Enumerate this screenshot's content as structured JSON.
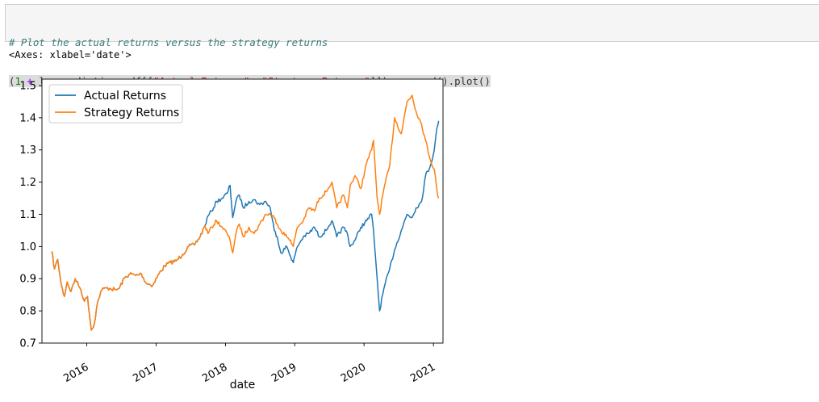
{
  "cell": {
    "line1": [
      {
        "t": "# Plot the actual returns versus the strategy returns",
        "k": "comment"
      }
    ],
    "line2": [
      {
        "t": "(",
        "k": "punct"
      },
      {
        "t": "1",
        "k": "number"
      },
      {
        "t": " ",
        "k": "punct"
      },
      {
        "t": "+",
        "k": "op"
      },
      {
        "t": " lr_predictions_df[[",
        "k": "name"
      },
      {
        "t": "\"Actual Returns\"",
        "k": "string"
      },
      {
        "t": ", ",
        "k": "name"
      },
      {
        "t": "\"Strategy Returns\"",
        "k": "string"
      },
      {
        "t": "]]).cumprod().plot()",
        "k": "name"
      }
    ]
  },
  "output": {
    "repr": "<Axes: xlabel='date'>"
  },
  "chart_data": {
    "type": "line",
    "xlabel": "date",
    "ylabel": "",
    "title": "",
    "xlim": [
      "2015-05-10",
      "2021-02-20"
    ],
    "ylim": [
      0.7,
      1.52
    ],
    "xticks": [
      "2016",
      "2017",
      "2018",
      "2019",
      "2020",
      "2021"
    ],
    "yticks": [
      0.7,
      0.8,
      0.9,
      1.0,
      1.1,
      1.2,
      1.3,
      1.4,
      1.5
    ],
    "ytick_labels": [
      "0.7",
      "0.8",
      "0.9",
      "1.0",
      "1.1",
      "1.2",
      "1.3",
      "1.4",
      "1.5"
    ],
    "grid": false,
    "legend": "upper-left",
    "series": [
      {
        "name": "Actual Returns",
        "color": "#1f77b4",
        "points": [
          [
            "2015-07-01",
            0.985
          ],
          [
            "2015-07-15",
            0.93
          ],
          [
            "2015-08-01",
            0.96
          ],
          [
            "2015-08-20",
            0.88
          ],
          [
            "2015-09-05",
            0.845
          ],
          [
            "2015-09-20",
            0.89
          ],
          [
            "2015-10-10",
            0.86
          ],
          [
            "2015-11-01",
            0.9
          ],
          [
            "2015-12-01",
            0.865
          ],
          [
            "2015-12-20",
            0.83
          ],
          [
            "2016-01-05",
            0.845
          ],
          [
            "2016-01-25",
            0.74
          ],
          [
            "2016-02-10",
            0.76
          ],
          [
            "2016-02-25",
            0.82
          ],
          [
            "2016-03-15",
            0.86
          ],
          [
            "2016-04-01",
            0.87
          ],
          [
            "2016-05-01",
            0.87
          ],
          [
            "2016-06-01",
            0.865
          ],
          [
            "2016-06-20",
            0.87
          ],
          [
            "2016-07-15",
            0.9
          ],
          [
            "2016-08-15",
            0.915
          ],
          [
            "2016-09-15",
            0.91
          ],
          [
            "2016-10-15",
            0.915
          ],
          [
            "2016-11-10",
            0.885
          ],
          [
            "2016-12-15",
            0.88
          ],
          [
            "2017-01-15",
            0.915
          ],
          [
            "2017-02-15",
            0.94
          ],
          [
            "2017-03-15",
            0.95
          ],
          [
            "2017-04-15",
            0.955
          ],
          [
            "2017-05-20",
            0.975
          ],
          [
            "2017-06-20",
            1.0
          ],
          [
            "2017-07-20",
            1.005
          ],
          [
            "2017-08-20",
            1.03
          ],
          [
            "2017-09-15",
            1.065
          ],
          [
            "2017-10-01",
            1.095
          ],
          [
            "2017-10-20",
            1.11
          ],
          [
            "2017-11-15",
            1.14
          ],
          [
            "2017-12-15",
            1.15
          ],
          [
            "2018-01-10",
            1.165
          ],
          [
            "2018-01-25",
            1.19
          ],
          [
            "2018-02-08",
            1.09
          ],
          [
            "2018-02-25",
            1.14
          ],
          [
            "2018-03-15",
            1.16
          ],
          [
            "2018-04-05",
            1.12
          ],
          [
            "2018-05-05",
            1.14
          ],
          [
            "2018-06-01",
            1.145
          ],
          [
            "2018-07-01",
            1.13
          ],
          [
            "2018-08-01",
            1.14
          ],
          [
            "2018-08-25",
            1.12
          ],
          [
            "2018-09-15",
            1.05
          ],
          [
            "2018-10-01",
            1.03
          ],
          [
            "2018-10-20",
            0.98
          ],
          [
            "2018-11-20",
            1.0
          ],
          [
            "2018-12-10",
            0.97
          ],
          [
            "2018-12-24",
            0.95
          ],
          [
            "2019-01-15",
            1.0
          ],
          [
            "2019-02-15",
            1.03
          ],
          [
            "2019-03-15",
            1.04
          ],
          [
            "2019-04-15",
            1.06
          ],
          [
            "2019-05-10",
            1.03
          ],
          [
            "2019-06-15",
            1.05
          ],
          [
            "2019-07-15",
            1.08
          ],
          [
            "2019-08-10",
            1.03
          ],
          [
            "2019-09-15",
            1.06
          ],
          [
            "2019-10-05",
            1.04
          ],
          [
            "2019-10-20",
            1.0
          ],
          [
            "2019-11-15",
            1.02
          ],
          [
            "2019-12-15",
            1.06
          ],
          [
            "2020-01-15",
            1.08
          ],
          [
            "2020-02-10",
            1.1
          ],
          [
            "2020-02-20",
            1.05
          ],
          [
            "2020-03-10",
            0.9
          ],
          [
            "2020-03-23",
            0.8
          ],
          [
            "2020-04-15",
            0.87
          ],
          [
            "2020-05-15",
            0.93
          ],
          [
            "2020-06-10",
            0.99
          ],
          [
            "2020-07-15",
            1.05
          ],
          [
            "2020-08-15",
            1.1
          ],
          [
            "2020-09-10",
            1.09
          ],
          [
            "2020-10-01",
            1.12
          ],
          [
            "2020-10-30",
            1.14
          ],
          [
            "2020-11-20",
            1.22
          ],
          [
            "2020-12-15",
            1.25
          ],
          [
            "2021-01-05",
            1.3
          ],
          [
            "2021-01-20",
            1.37
          ],
          [
            "2021-01-28",
            1.39
          ]
        ]
      },
      {
        "name": "Strategy Returns",
        "color": "#ff7f0e",
        "points": [
          [
            "2015-07-01",
            0.985
          ],
          [
            "2015-07-15",
            0.93
          ],
          [
            "2015-08-01",
            0.96
          ],
          [
            "2015-08-20",
            0.88
          ],
          [
            "2015-09-05",
            0.845
          ],
          [
            "2015-09-20",
            0.89
          ],
          [
            "2015-10-10",
            0.86
          ],
          [
            "2015-11-01",
            0.9
          ],
          [
            "2015-12-01",
            0.865
          ],
          [
            "2015-12-20",
            0.83
          ],
          [
            "2016-01-05",
            0.845
          ],
          [
            "2016-01-25",
            0.74
          ],
          [
            "2016-02-10",
            0.76
          ],
          [
            "2016-02-25",
            0.82
          ],
          [
            "2016-03-15",
            0.86
          ],
          [
            "2016-04-01",
            0.87
          ],
          [
            "2016-05-01",
            0.87
          ],
          [
            "2016-06-01",
            0.865
          ],
          [
            "2016-06-20",
            0.87
          ],
          [
            "2016-07-15",
            0.9
          ],
          [
            "2016-08-15",
            0.915
          ],
          [
            "2016-09-15",
            0.91
          ],
          [
            "2016-10-15",
            0.915
          ],
          [
            "2016-11-10",
            0.885
          ],
          [
            "2016-12-15",
            0.88
          ],
          [
            "2017-01-15",
            0.915
          ],
          [
            "2017-02-15",
            0.94
          ],
          [
            "2017-03-15",
            0.95
          ],
          [
            "2017-04-15",
            0.955
          ],
          [
            "2017-05-20",
            0.975
          ],
          [
            "2017-06-20",
            1.0
          ],
          [
            "2017-07-20",
            1.005
          ],
          [
            "2017-08-20",
            1.03
          ],
          [
            "2017-09-15",
            1.065
          ],
          [
            "2017-10-01",
            1.04
          ],
          [
            "2017-10-20",
            1.06
          ],
          [
            "2017-11-15",
            1.08
          ],
          [
            "2017-12-15",
            1.06
          ],
          [
            "2018-01-10",
            1.04
          ],
          [
            "2018-01-25",
            1.02
          ],
          [
            "2018-02-08",
            0.98
          ],
          [
            "2018-02-25",
            1.04
          ],
          [
            "2018-03-15",
            1.07
          ],
          [
            "2018-04-05",
            1.03
          ],
          [
            "2018-05-05",
            1.06
          ],
          [
            "2018-06-01",
            1.04
          ],
          [
            "2018-07-01",
            1.07
          ],
          [
            "2018-08-01",
            1.1
          ],
          [
            "2018-08-25",
            1.1
          ],
          [
            "2018-09-15",
            1.09
          ],
          [
            "2018-10-01",
            1.07
          ],
          [
            "2018-10-20",
            1.05
          ],
          [
            "2018-11-20",
            1.03
          ],
          [
            "2018-12-10",
            1.02
          ],
          [
            "2018-12-24",
            1.0
          ],
          [
            "2019-01-15",
            1.06
          ],
          [
            "2019-02-15",
            1.08
          ],
          [
            "2019-03-15",
            1.12
          ],
          [
            "2019-04-15",
            1.11
          ],
          [
            "2019-05-10",
            1.15
          ],
          [
            "2019-06-15",
            1.17
          ],
          [
            "2019-07-15",
            1.2
          ],
          [
            "2019-08-10",
            1.12
          ],
          [
            "2019-09-15",
            1.16
          ],
          [
            "2019-10-05",
            1.12
          ],
          [
            "2019-10-20",
            1.19
          ],
          [
            "2019-11-15",
            1.22
          ],
          [
            "2019-12-15",
            1.18
          ],
          [
            "2020-01-15",
            1.26
          ],
          [
            "2020-02-10",
            1.3
          ],
          [
            "2020-02-20",
            1.33
          ],
          [
            "2020-03-10",
            1.15
          ],
          [
            "2020-03-23",
            1.1
          ],
          [
            "2020-04-15",
            1.18
          ],
          [
            "2020-05-15",
            1.25
          ],
          [
            "2020-06-10",
            1.4
          ],
          [
            "2020-07-15",
            1.35
          ],
          [
            "2020-08-15",
            1.45
          ],
          [
            "2020-09-10",
            1.47
          ],
          [
            "2020-10-01",
            1.42
          ],
          [
            "2020-10-30",
            1.38
          ],
          [
            "2020-11-20",
            1.33
          ],
          [
            "2020-12-15",
            1.27
          ],
          [
            "2021-01-05",
            1.24
          ],
          [
            "2021-01-20",
            1.17
          ],
          [
            "2021-01-28",
            1.15
          ]
        ]
      }
    ]
  }
}
